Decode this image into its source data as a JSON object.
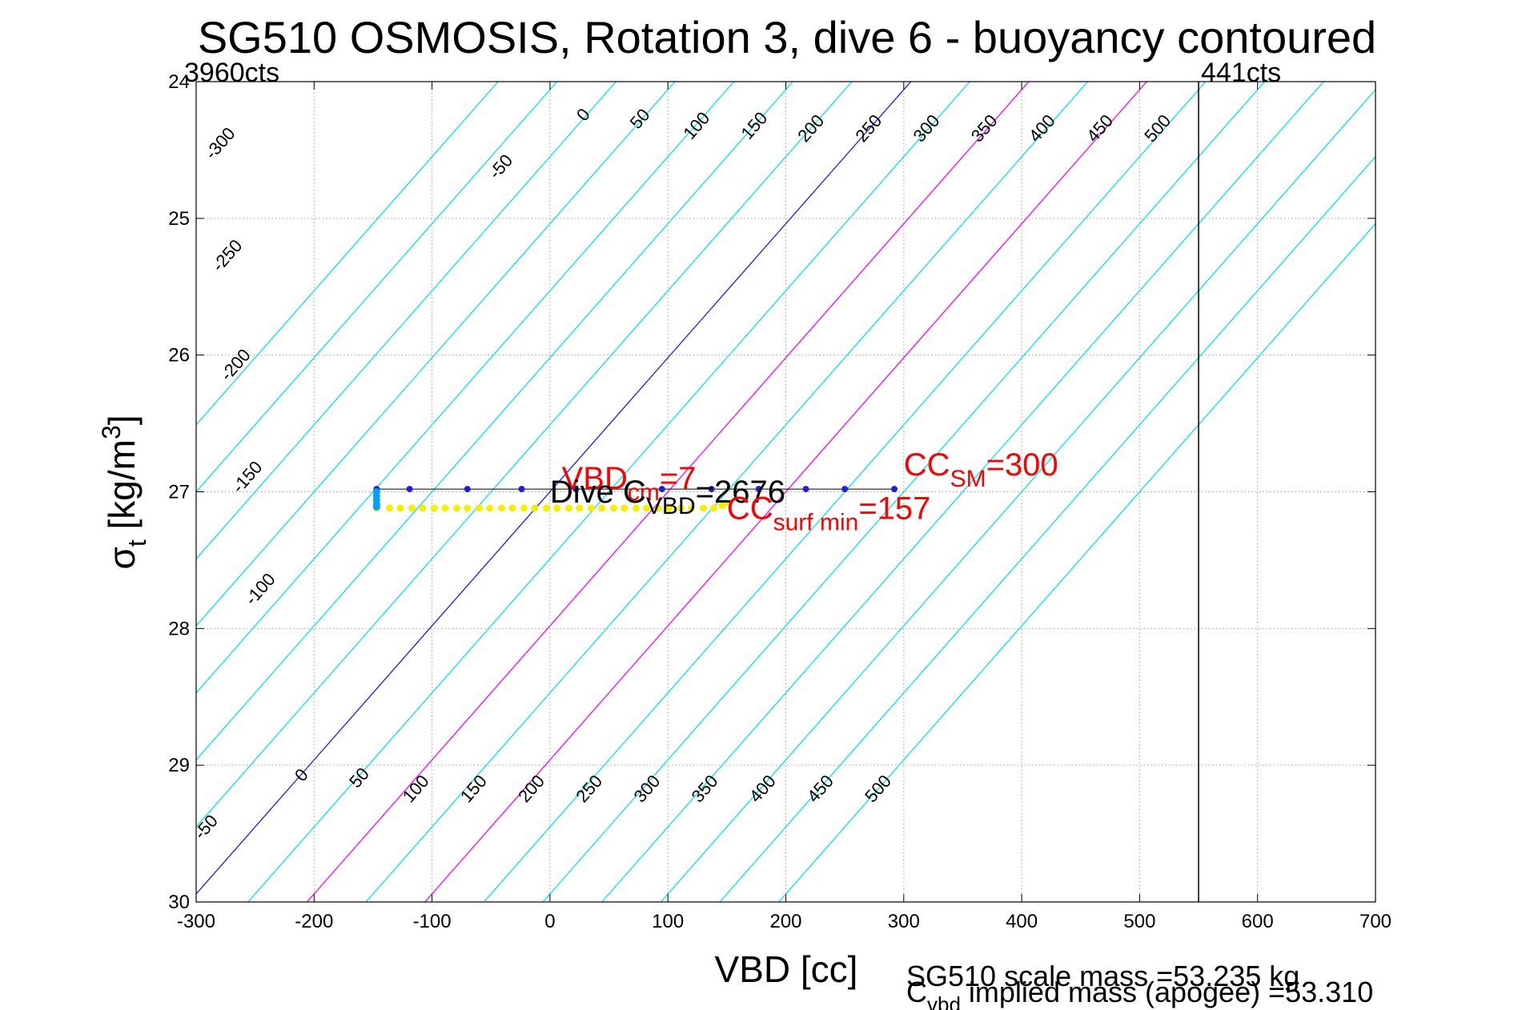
{
  "chart_data": {
    "type": "line",
    "title": "SG510 OSMOSIS, Rotation 3, dive 6 - buoyancy contoured",
    "xlabel": "VBD [cc]",
    "ylabel": {
      "sigma": "σ",
      "sub": "t",
      "units": "[kg/m",
      "sup": "3",
      "close": "]"
    },
    "xlim": [
      -300,
      700
    ],
    "ylim": [
      24,
      30
    ],
    "y_reversed": true,
    "xticks": [
      "-300",
      "-200",
      "-100",
      "0",
      "100",
      "200",
      "300",
      "400",
      "500",
      "600",
      "700"
    ],
    "yticks": [
      "24",
      "25",
      "26",
      "27",
      "28",
      "29",
      "30"
    ],
    "grid": true,
    "top_labels": {
      "left": "3960cts",
      "right": "441cts"
    },
    "vbd_limit_line_x": 550,
    "contour_slope_cc_per_sigma": -102,
    "contours": [
      {
        "level": -350,
        "color": "#00e5ee"
      },
      {
        "level": -300,
        "color": "#00e5ee"
      },
      {
        "level": -250,
        "color": "#00e5ee"
      },
      {
        "level": -200,
        "color": "#00e5ee"
      },
      {
        "level": -150,
        "color": "#00e5ee"
      },
      {
        "level": -100,
        "color": "#00e5ee"
      },
      {
        "level": -50,
        "color": "#00e5ee"
      },
      {
        "level": 0,
        "color": "#1a1aff"
      },
      {
        "level": 50,
        "color": "#00e5ee"
      },
      {
        "level": 100,
        "color": "#ff00ff"
      },
      {
        "level": 150,
        "color": "#00e5ee"
      },
      {
        "level": 200,
        "color": "#ff00ff"
      },
      {
        "level": 250,
        "color": "#00e5ee"
      },
      {
        "level": 300,
        "color": "#00e5ee"
      },
      {
        "level": 350,
        "color": "#00e5ee"
      },
      {
        "level": 400,
        "color": "#00e5ee"
      },
      {
        "level": 450,
        "color": "#00e5ee"
      },
      {
        "level": 500,
        "color": "#00e5ee"
      }
    ],
    "contour_labels_top": [
      {
        "text": "-300",
        "x": -276,
        "y": 24.48
      },
      {
        "text": "-50",
        "x": -38,
        "y": 24.65
      },
      {
        "text": "0",
        "x": 32,
        "y": 24.27
      },
      {
        "text": "50",
        "x": 80,
        "y": 24.3
      },
      {
        "text": "100",
        "x": 128,
        "y": 24.35
      },
      {
        "text": "150",
        "x": 177,
        "y": 24.35
      },
      {
        "text": "200",
        "x": 225,
        "y": 24.37
      },
      {
        "text": "250",
        "x": 274,
        "y": 24.37
      },
      {
        "text": "300",
        "x": 323,
        "y": 24.37
      },
      {
        "text": "350",
        "x": 372,
        "y": 24.37
      },
      {
        "text": "400",
        "x": 421,
        "y": 24.37
      },
      {
        "text": "450",
        "x": 470,
        "y": 24.37
      },
      {
        "text": "500",
        "x": 519,
        "y": 24.37
      }
    ],
    "contour_labels_left": [
      {
        "text": "-250",
        "x": -270,
        "y": 25.3
      },
      {
        "text": "-200",
        "x": -263,
        "y": 26.1
      },
      {
        "text": "-150",
        "x": -253,
        "y": 26.92
      },
      {
        "text": "-100",
        "x": -242,
        "y": 27.74
      },
      {
        "text": "-50",
        "x": -288,
        "y": 29.48
      }
    ],
    "contour_labels_bottom": [
      {
        "text": "0",
        "x": -207,
        "y": 29.1
      },
      {
        "text": "50",
        "x": -158,
        "y": 29.12
      },
      {
        "text": "100",
        "x": -110,
        "y": 29.2
      },
      {
        "text": "150",
        "x": -61,
        "y": 29.2
      },
      {
        "text": "200",
        "x": -12,
        "y": 29.2
      },
      {
        "text": "250",
        "x": 37,
        "y": 29.2
      },
      {
        "text": "300",
        "x": 86,
        "y": 29.2
      },
      {
        "text": "350",
        "x": 135,
        "y": 29.2
      },
      {
        "text": "400",
        "x": 184,
        "y": 29.2
      },
      {
        "text": "450",
        "x": 233,
        "y": 29.2
      },
      {
        "text": "500",
        "x": 282,
        "y": 29.2
      }
    ],
    "series": [
      {
        "color": "#1f1fd6",
        "x": [
          -147,
          -119,
          -70,
          -24,
          22,
          95,
          137,
          177,
          217,
          250,
          292
        ],
        "y": [
          26.98,
          26.98,
          26.98,
          26.98,
          26.98,
          26.98,
          26.98,
          26.98,
          26.98,
          26.98,
          26.98
        ]
      },
      {
        "color": "#f2f200",
        "x": [
          -147,
          -136,
          -127,
          -117,
          -108,
          -98,
          -89,
          -79,
          -70,
          -60,
          -51,
          -41,
          -32,
          -22,
          -13,
          -3,
          6,
          16,
          25,
          35,
          44,
          54,
          63,
          73,
          82,
          92,
          101,
          111,
          120,
          130,
          139,
          146,
          149
        ],
        "y": [
          27.12,
          27.12,
          27.12,
          27.12,
          27.12,
          27.12,
          27.12,
          27.12,
          27.12,
          27.12,
          27.12,
          27.12,
          27.12,
          27.12,
          27.12,
          27.12,
          27.12,
          27.12,
          27.12,
          27.12,
          27.12,
          27.12,
          27.12,
          27.12,
          27.12,
          27.12,
          27.12,
          27.12,
          27.12,
          27.12,
          27.12,
          27.1,
          27.08
        ]
      },
      {
        "color": "#00a0ff",
        "x": [
          -147,
          -147,
          -147,
          -147,
          -147
        ],
        "y": [
          27.0,
          27.03,
          27.06,
          27.09,
          27.11
        ]
      }
    ],
    "annotations": {
      "vbd_cm": {
        "main": "VBD",
        "sub": "cm",
        "value": "=7",
        "color": "#ff0000",
        "x": 10,
        "y": 26.98
      },
      "dive_c": {
        "main": "Dive C",
        "sub": "VBD",
        "value": "=2676",
        "color": "#000000",
        "x": 0,
        "y": 27.08
      },
      "cc_sm": {
        "main": "CC",
        "sub": "SM",
        "value": "=300",
        "color": "#ff0000",
        "x": 300,
        "y": 26.88
      },
      "cc_surf_min": {
        "main": "CC",
        "sub": "surf min",
        "value": "=157",
        "color": "#ff0000",
        "x": 150,
        "y": 27.2
      }
    },
    "footer": {
      "scale_mass": "SG510 scale mass =53.235 kg",
      "implied_mass": {
        "main": "C",
        "sub": "vbd",
        "rest": " implied mass (apogee) =53.310"
      }
    }
  }
}
